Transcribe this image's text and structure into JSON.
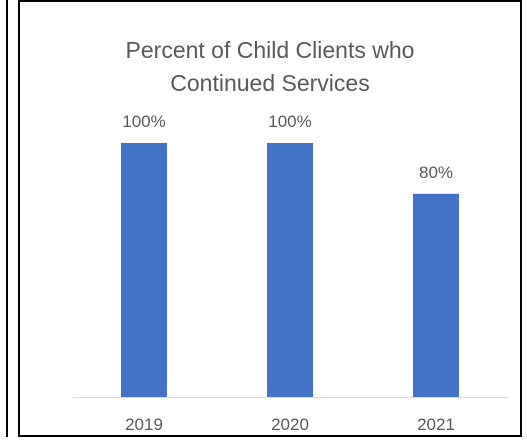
{
  "chart_data": {
    "type": "bar",
    "title_lines": [
      "Percent of Child Clients who",
      "Continued Services"
    ],
    "categories": [
      "2019",
      "2020",
      "2021"
    ],
    "values": [
      100,
      100,
      80
    ],
    "value_labels": [
      "100%",
      "100%",
      "80%"
    ],
    "ylim": [
      0,
      100
    ],
    "grid": false,
    "bar_color": "#4472C4",
    "axis_color": "#d9d9d9",
    "text_color": "#595959"
  }
}
